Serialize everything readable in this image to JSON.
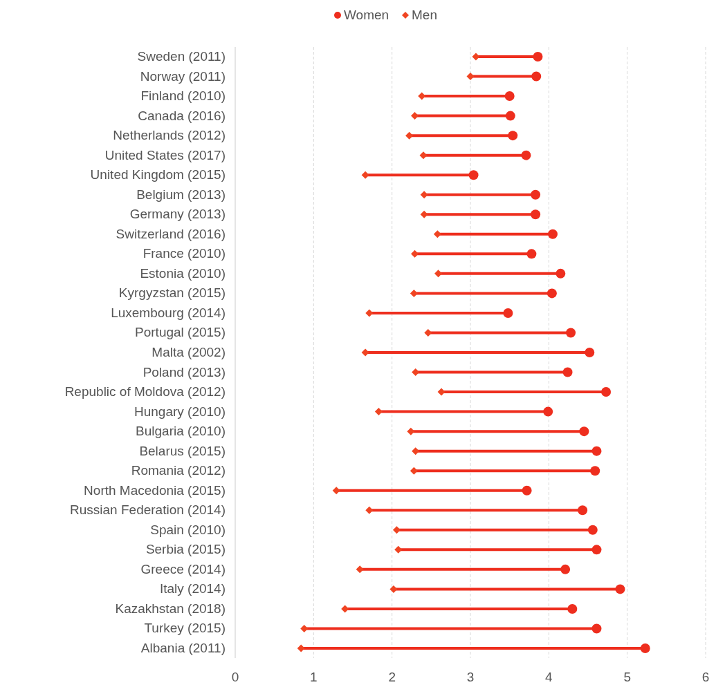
{
  "chart_data": {
    "type": "scatter",
    "orientation": "horizontal",
    "categories": [
      "Sweden (2011)",
      "Norway (2011)",
      "Finland (2010)",
      "Canada (2016)",
      "Netherlands (2012)",
      "United States (2017)",
      "United Kingdom (2015)",
      "Belgium (2013)",
      "Germany (2013)",
      "Switzerland (2016)",
      "France (2010)",
      "Estonia (2010)",
      "Kyrgyzstan (2015)",
      "Luxembourg (2014)",
      "Portugal (2015)",
      "Malta (2002)",
      "Poland (2013)",
      "Republic of Moldova (2012)",
      "Hungary (2010)",
      "Bulgaria (2010)",
      "Belarus (2015)",
      "Romania (2012)",
      "North Macedonia (2015)",
      "Russian Federation (2014)",
      "Spain (2010)",
      "Serbia (2015)",
      "Greece (2014)",
      "Italy (2014)",
      "Kazakhstan (2018)",
      "Turkey (2015)",
      "Albania (2011)"
    ],
    "series": [
      {
        "name": "Women",
        "color": "#ee2e1e",
        "marker": "circle",
        "values": [
          3.86,
          3.84,
          3.5,
          3.51,
          3.54,
          3.71,
          3.04,
          3.83,
          3.83,
          4.05,
          3.78,
          4.15,
          4.04,
          3.48,
          4.28,
          4.52,
          4.24,
          4.73,
          3.99,
          4.45,
          4.61,
          4.59,
          3.72,
          4.43,
          4.56,
          4.61,
          4.21,
          4.91,
          4.3,
          4.61,
          5.23
        ]
      },
      {
        "name": "Men",
        "color": "#f04422",
        "marker": "diamond",
        "values": [
          3.07,
          3.0,
          2.38,
          2.29,
          2.22,
          2.4,
          1.66,
          2.41,
          2.41,
          2.58,
          2.29,
          2.59,
          2.28,
          1.71,
          2.46,
          1.66,
          2.3,
          2.63,
          1.83,
          2.24,
          2.3,
          2.28,
          1.29,
          1.71,
          2.06,
          2.08,
          1.59,
          2.02,
          1.4,
          0.88,
          0.84
        ]
      }
    ],
    "xlim": [
      0,
      6
    ],
    "xticks": [
      0,
      1,
      2,
      3,
      4,
      5,
      6
    ],
    "grid": "x",
    "legend": "top"
  }
}
